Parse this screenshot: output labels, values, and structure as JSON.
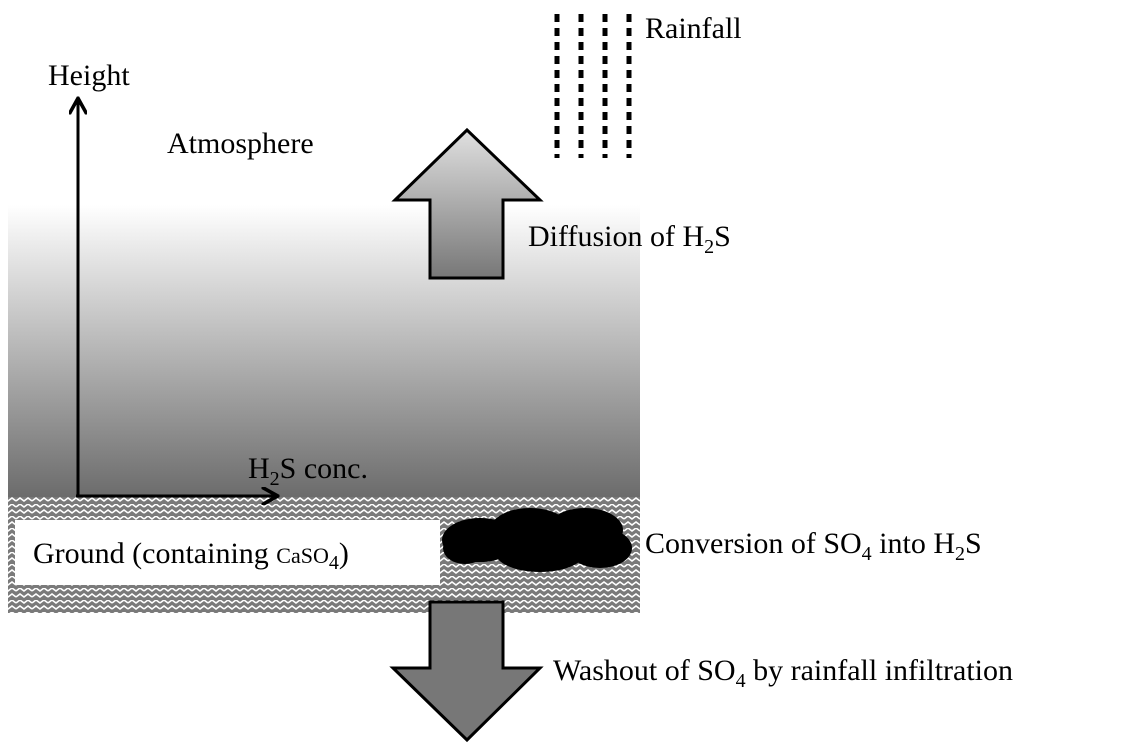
{
  "labels": {
    "height": "Height",
    "atmosphere": "Atmosphere",
    "rainfall": "Rainfall",
    "diffusion": [
      "Diffusion of H",
      "2",
      "S"
    ],
    "concentration": [
      "H",
      "2",
      "S conc."
    ],
    "ground": [
      "Ground (containing ",
      "CaSO",
      "4",
      ")"
    ],
    "conversion": [
      "Conversion of SO",
      "4",
      " into H",
      "2",
      "S"
    ],
    "washout": [
      "Washout of SO",
      "4",
      " by rainfall infiltration"
    ]
  }
}
